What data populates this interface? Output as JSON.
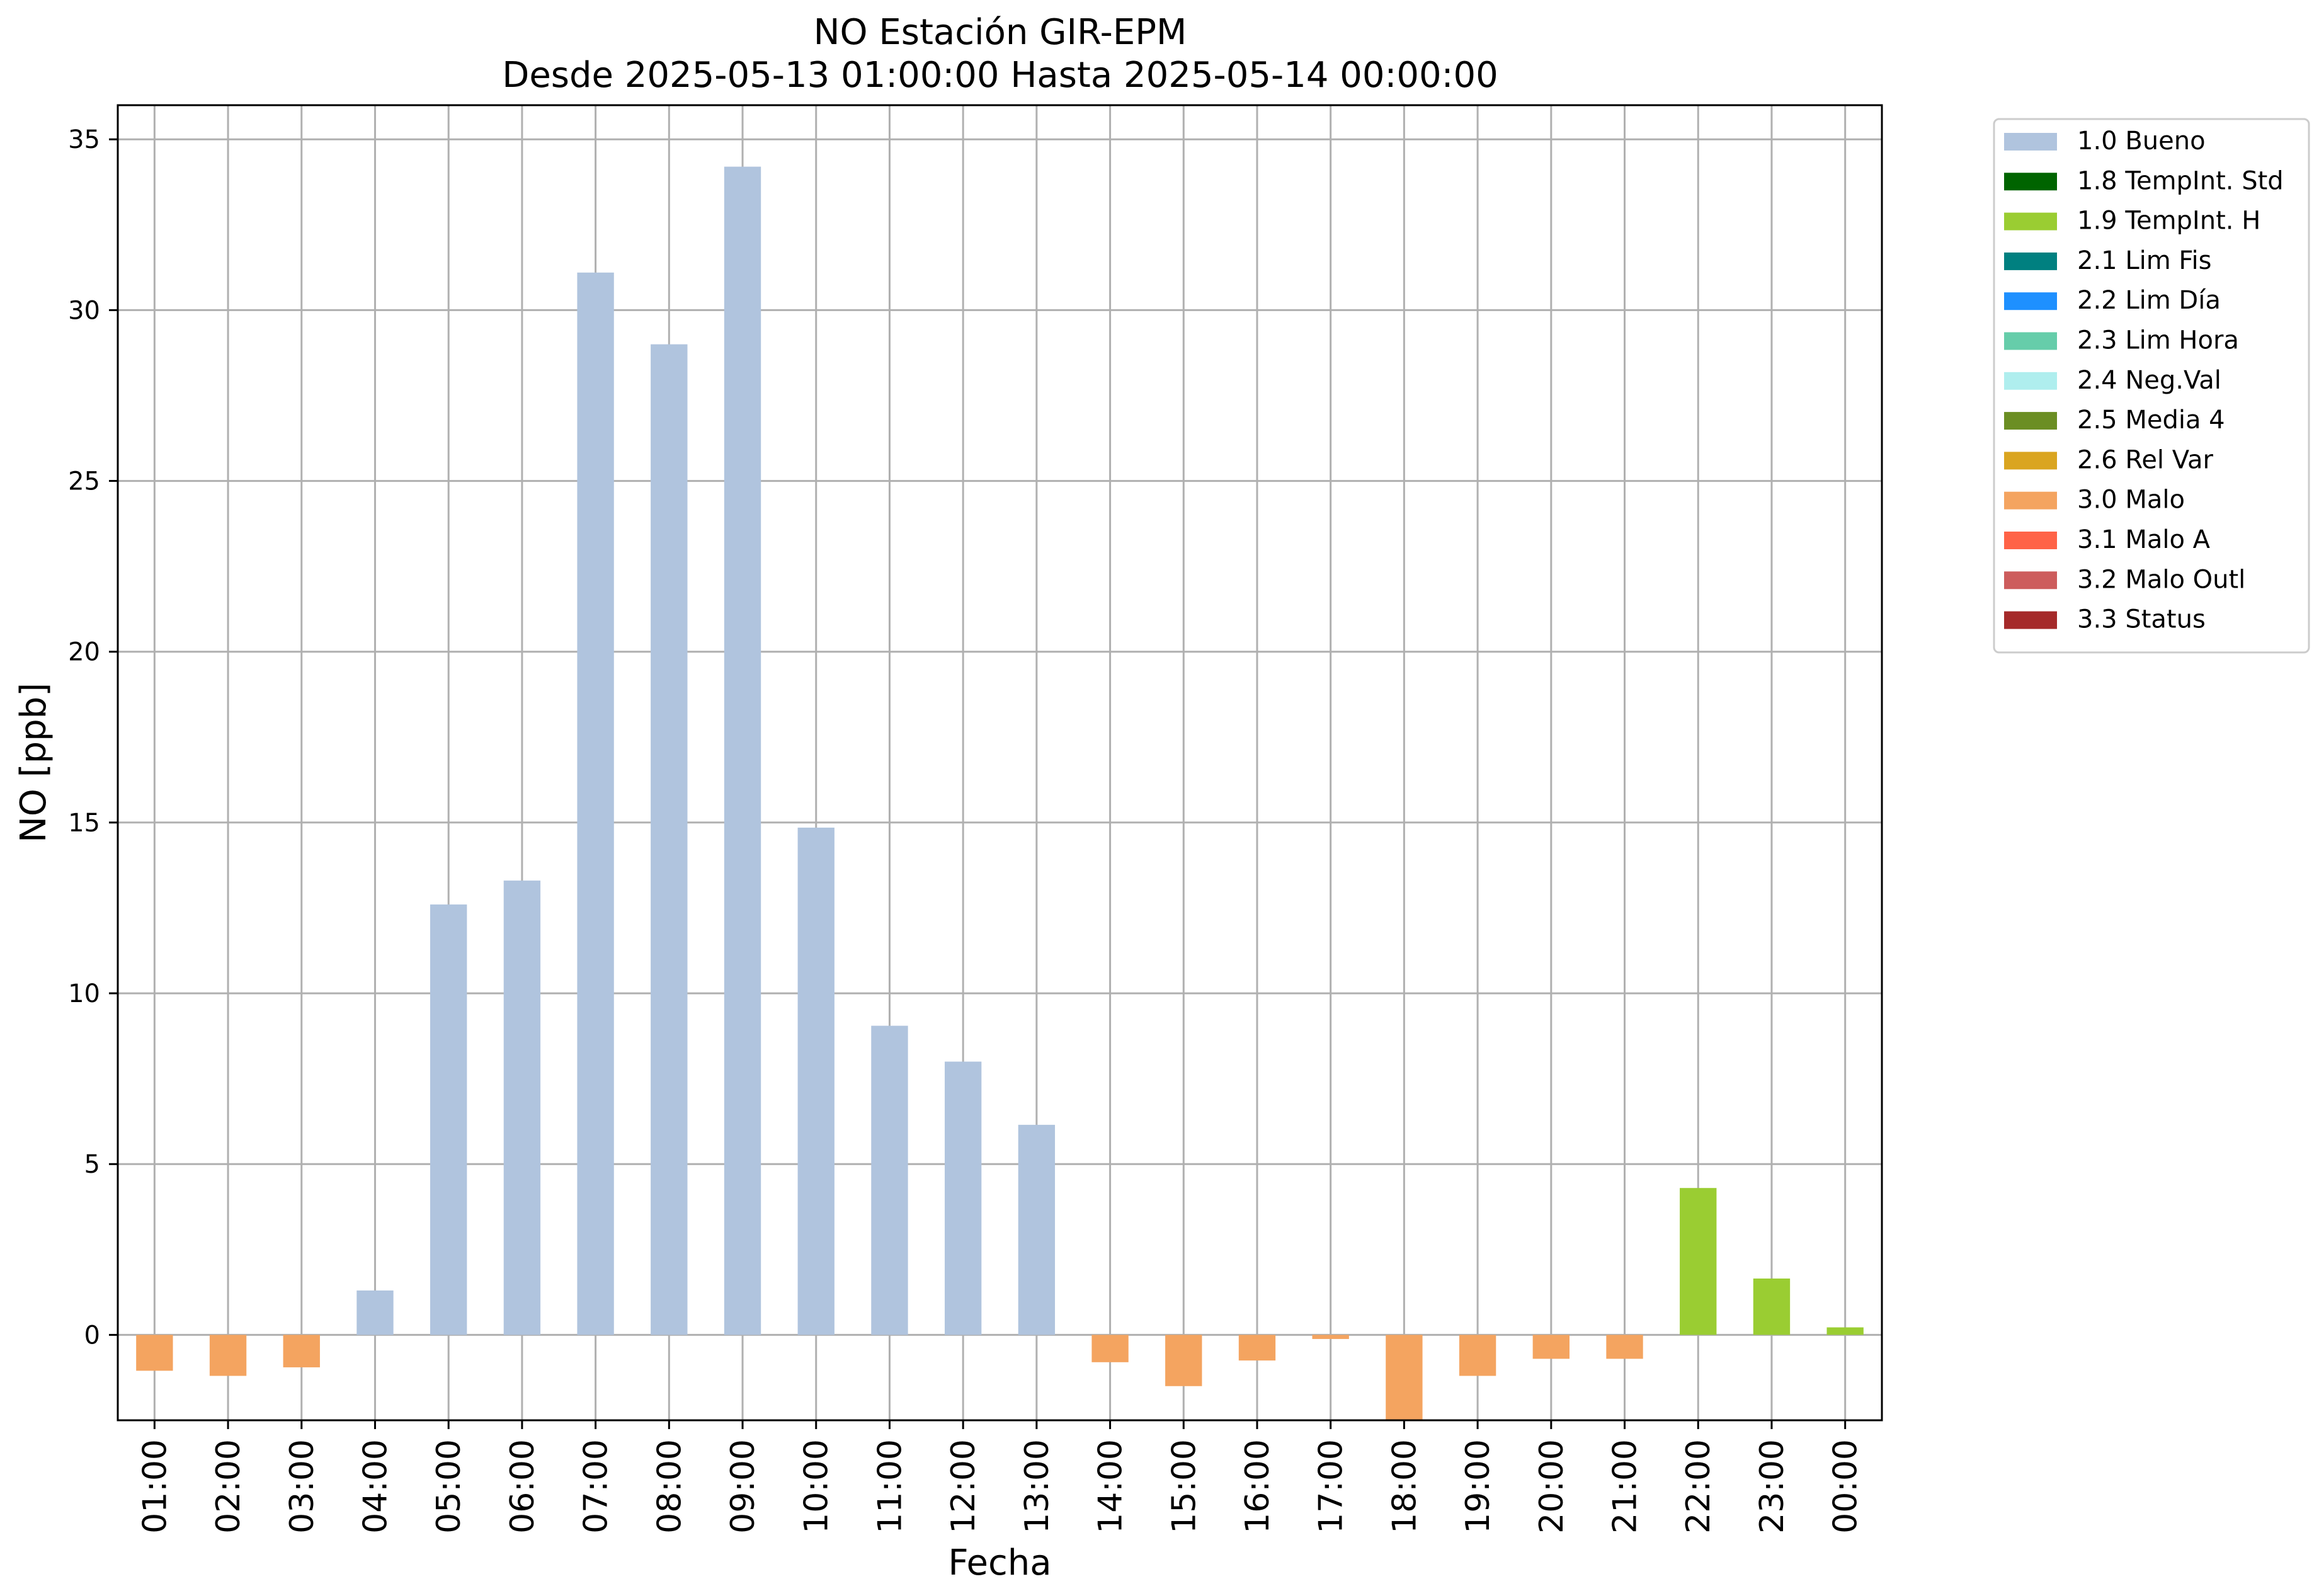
{
  "chart_data": {
    "type": "bar",
    "title": "NO Estación GIR-EPM",
    "subtitle": "Desde 2025-05-13 01:00:00 Hasta 2025-05-14 00:00:00",
    "xlabel": "Fecha",
    "ylabel": "NO [ppb]",
    "ylim": [
      -2.5,
      36.0
    ],
    "yticks": [
      0,
      5,
      10,
      15,
      20,
      25,
      30,
      35
    ],
    "grid": true,
    "legend_position": "outside-right-top",
    "categories": [
      "01:00",
      "02:00",
      "03:00",
      "04:00",
      "05:00",
      "06:00",
      "07:00",
      "08:00",
      "09:00",
      "10:00",
      "11:00",
      "12:00",
      "13:00",
      "14:00",
      "15:00",
      "16:00",
      "17:00",
      "18:00",
      "19:00",
      "20:00",
      "21:00",
      "22:00",
      "23:00",
      "00:00"
    ],
    "values": [
      -1.05,
      -1.2,
      -0.95,
      1.3,
      12.6,
      13.3,
      31.1,
      29.0,
      34.2,
      14.85,
      9.05,
      8.0,
      6.15,
      -0.8,
      -1.5,
      -0.75,
      -0.12,
      -2.5,
      -1.2,
      -0.7,
      -0.7,
      4.3,
      1.65,
      0.22
    ],
    "flags": [
      "3.0 Malo",
      "3.0 Malo",
      "3.0 Malo",
      "1.0 Bueno",
      "1.0 Bueno",
      "1.0 Bueno",
      "1.0 Bueno",
      "1.0 Bueno",
      "1.0 Bueno",
      "1.0 Bueno",
      "1.0 Bueno",
      "1.0 Bueno",
      "1.0 Bueno",
      "3.0 Malo",
      "3.0 Malo",
      "3.0 Malo",
      "3.0 Malo",
      "3.0 Malo",
      "3.0 Malo",
      "3.0 Malo",
      "3.0 Malo",
      "1.9 TempInt. H",
      "1.9 TempInt. H",
      "1.9 TempInt. H"
    ],
    "legend": [
      {
        "label": "1.0 Bueno",
        "color": "#b0c4de"
      },
      {
        "label": "1.8 TempInt. Std",
        "color": "#006400"
      },
      {
        "label": "1.9 TempInt. H",
        "color": "#9acd32"
      },
      {
        "label": "2.1 Lim Fis",
        "color": "#008080"
      },
      {
        "label": "2.2 Lim Día",
        "color": "#1e90ff"
      },
      {
        "label": "2.3 Lim Hora",
        "color": "#66cdaa"
      },
      {
        "label": "2.4 Neg.Val",
        "color": "#afeeee"
      },
      {
        "label": "2.5 Media 4",
        "color": "#6b8e23"
      },
      {
        "label": "2.6 Rel Var",
        "color": "#daa520"
      },
      {
        "label": "3.0 Malo",
        "color": "#f4a460"
      },
      {
        "label": "3.1 Malo A",
        "color": "#ff6347"
      },
      {
        "label": "3.2 Malo Outl",
        "color": "#cd5c5c"
      },
      {
        "label": "3.3 Status",
        "color": "#a52a2a"
      }
    ]
  }
}
